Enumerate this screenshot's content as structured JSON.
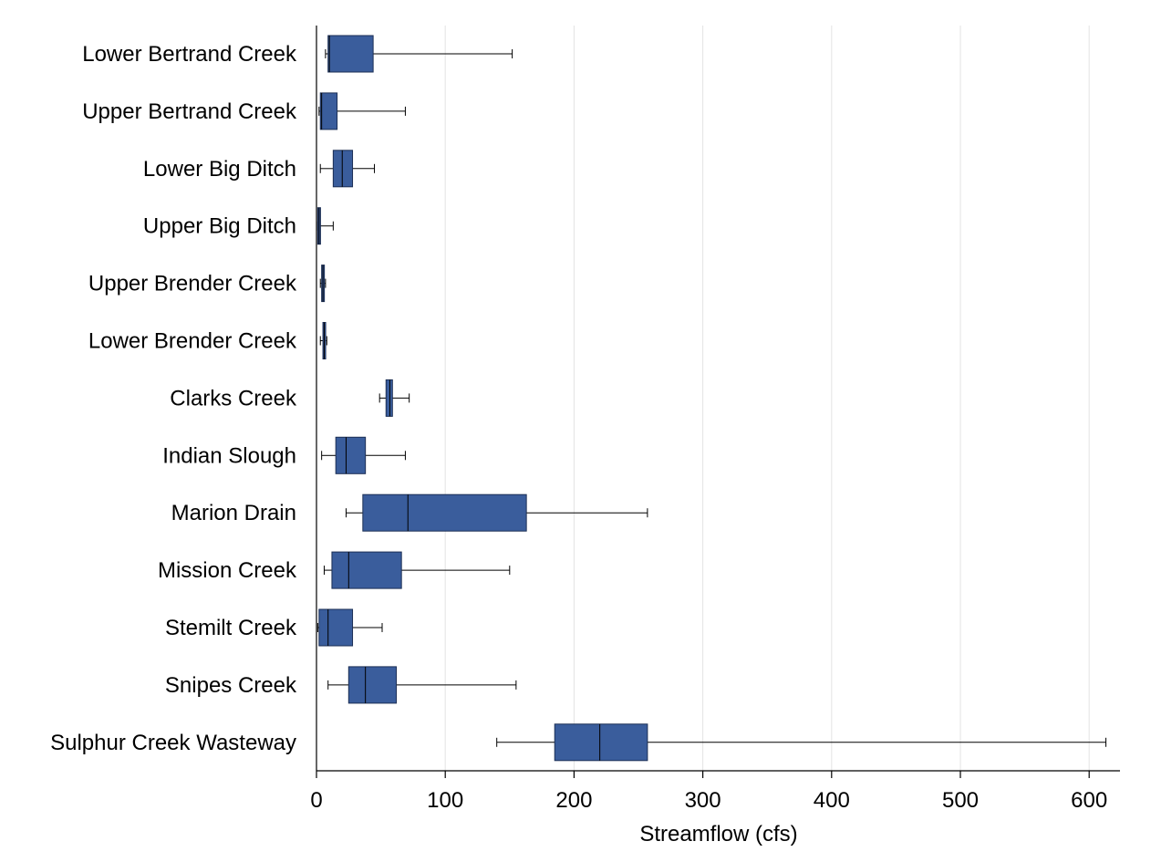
{
  "chart_data": {
    "type": "boxplot",
    "orientation": "horizontal",
    "title": "",
    "xlabel": "Streamflow (cfs)",
    "ylabel": "",
    "xlim": [
      0,
      625
    ],
    "xticks": [
      0,
      100,
      200,
      300,
      400,
      500,
      600
    ],
    "xtick_labels": [
      "0",
      "100",
      "200",
      "300",
      "400",
      "500",
      "600"
    ],
    "grid": "vertical",
    "box_color": "#3a5d9c",
    "categories": [
      "Lower Bertrand Creek",
      "Upper Bertrand Creek",
      "Lower Big Ditch",
      "Upper Big Ditch",
      "Upper Brender Creek",
      "Lower Brender Creek",
      "Clarks Creek",
      "Indian Slough",
      "Marion Drain",
      "Mission Creek",
      "Stemilt Creek",
      "Snipes Creek",
      "Sulphur Creek Wasteway"
    ],
    "boxes": [
      {
        "min": 7,
        "q1": 9,
        "median": 10,
        "q3": 44,
        "max": 152
      },
      {
        "min": 2,
        "q1": 3,
        "median": 4,
        "q3": 16,
        "max": 69
      },
      {
        "min": 3,
        "q1": 13,
        "median": 20,
        "q3": 28,
        "max": 45
      },
      {
        "min": 1,
        "q1": 1,
        "median": 2,
        "q3": 3,
        "max": 13
      },
      {
        "min": 3,
        "q1": 4,
        "median": 5,
        "q3": 6,
        "max": 7
      },
      {
        "min": 3,
        "q1": 5,
        "median": 6,
        "q3": 7,
        "max": 8
      },
      {
        "min": 49,
        "q1": 54,
        "median": 57,
        "q3": 59,
        "max": 72
      },
      {
        "min": 4,
        "q1": 15,
        "median": 23,
        "q3": 38,
        "max": 69
      },
      {
        "min": 23,
        "q1": 36,
        "median": 71,
        "q3": 163,
        "max": 257
      },
      {
        "min": 6,
        "q1": 12,
        "median": 25,
        "q3": 66,
        "max": 150
      },
      {
        "min": 1,
        "q1": 2,
        "median": 9,
        "q3": 28,
        "max": 51
      },
      {
        "min": 9,
        "q1": 25,
        "median": 38,
        "q3": 62,
        "max": 155
      },
      {
        "min": 140,
        "q1": 185,
        "median": 220,
        "q3": 257,
        "max": 613
      }
    ]
  }
}
